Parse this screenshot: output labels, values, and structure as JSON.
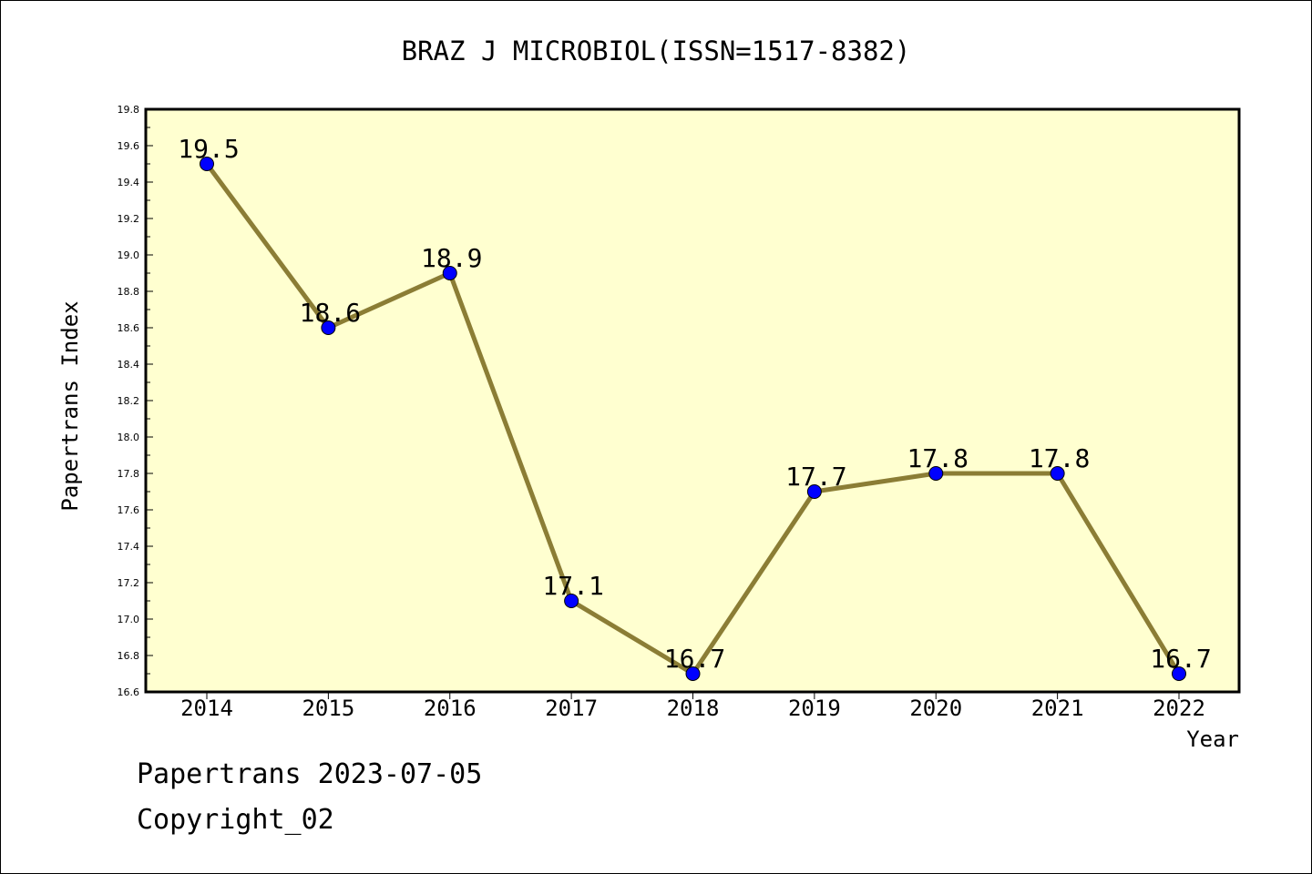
{
  "chart_data": {
    "type": "line",
    "title": "BRAZ J MICROBIOL(ISSN=1517-8382)",
    "xlabel": "Year",
    "ylabel": "Papertrans Index",
    "categories": [
      "2014",
      "2015",
      "2016",
      "2017",
      "2018",
      "2019",
      "2020",
      "2021",
      "2022"
    ],
    "series": [
      {
        "values": [
          19.5,
          18.6,
          18.9,
          17.1,
          16.7,
          17.7,
          17.8,
          17.8,
          16.7
        ]
      }
    ],
    "data_labels": [
      "19.5",
      "18.6",
      "18.9",
      "17.1",
      "16.7",
      "17.7",
      "17.8",
      "17.8",
      "16.7"
    ],
    "ylim": [
      16.6,
      19.8
    ],
    "yticks": [
      "16.6",
      "16.8",
      "17.0",
      "17.2",
      "17.4",
      "17.6",
      "17.8",
      "18.0",
      "18.2",
      "18.4",
      "18.6",
      "18.8",
      "19.0",
      "19.2",
      "19.4",
      "19.6",
      "19.8"
    ],
    "grid": false,
    "colors": {
      "plot_bg": "#ffffd0",
      "line": "#8b7d35",
      "marker": "#0000ff"
    }
  },
  "footer": {
    "date": "Papertrans 2023-07-05",
    "copyright": "Copyright_02"
  }
}
